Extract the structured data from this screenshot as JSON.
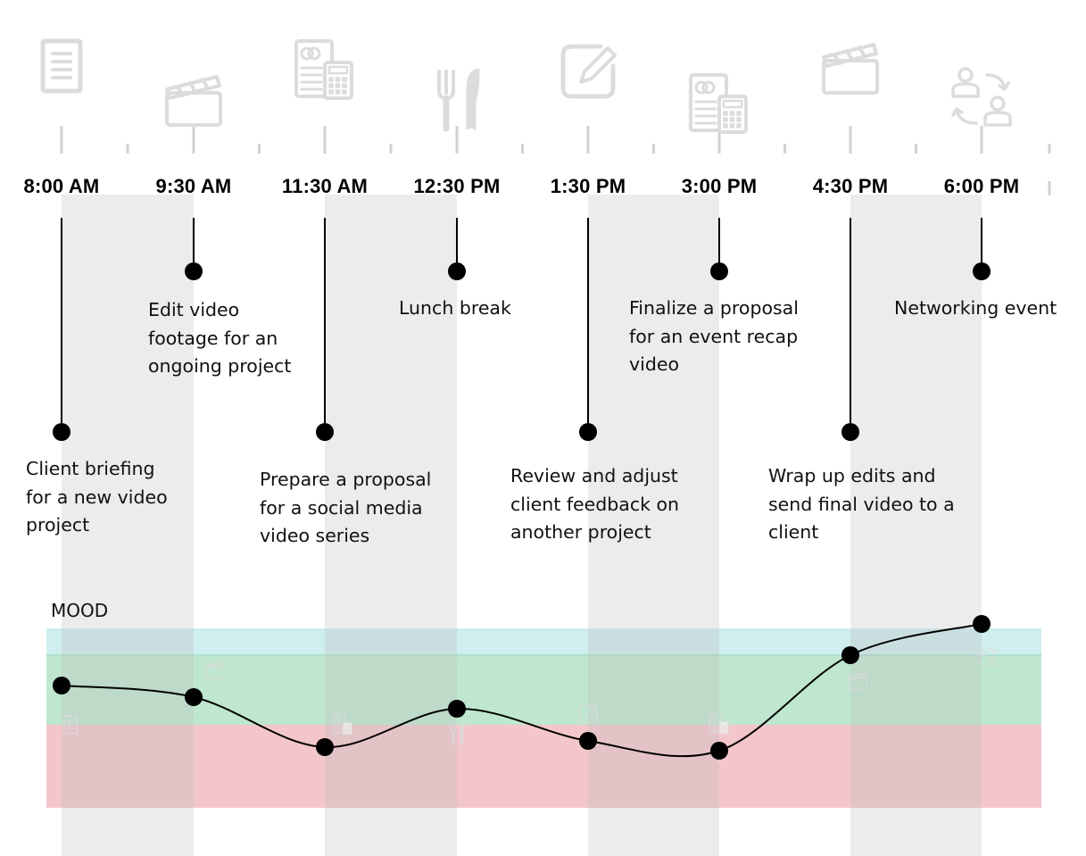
{
  "timeline": {
    "times": [
      "8:00 AM",
      "9:30 AM",
      "11:30 AM",
      "12:30 PM",
      "1:30 PM",
      "3:00 PM",
      "4:30 PM",
      "6:00 PM"
    ],
    "events": [
      {
        "text": "Client briefing\nfor a new video\nproject",
        "icon": "document-icon",
        "mood": 0.44
      },
      {
        "text": "Edit video\nfootage for an\nongoing project",
        "icon": "clapperboard-icon",
        "mood": 0.31
      },
      {
        "text": "Prepare a proposal\nfor a social media\nvideo series",
        "icon": "proposal-calculator-icon",
        "mood": -0.25
      },
      {
        "text": "Lunch break",
        "icon": "fork-knife-icon",
        "mood": 0.18
      },
      {
        "text": "Review and adjust\nclient feedback on\nanother project",
        "icon": "edit-icon",
        "mood": -0.18
      },
      {
        "text": "Finalize a proposal\nfor an event recap\nvideo",
        "icon": "proposal-calculator-icon",
        "mood": -0.29
      },
      {
        "text": "Wrap up edits and\nsend final video to a\nclient",
        "icon": "clapperboard-icon",
        "mood": 0.78
      },
      {
        "text": "Networking event",
        "icon": "networking-icon",
        "mood": 1.13
      }
    ]
  },
  "mood": {
    "label": "MOOD",
    "colors": {
      "positive_band": "#bfe7cf",
      "top_band": "#cfeeee",
      "negative_band": "#f3c6cb",
      "column_shade": "#b9bbb9",
      "line": "#000000",
      "icon": "#dcdcdc"
    }
  }
}
